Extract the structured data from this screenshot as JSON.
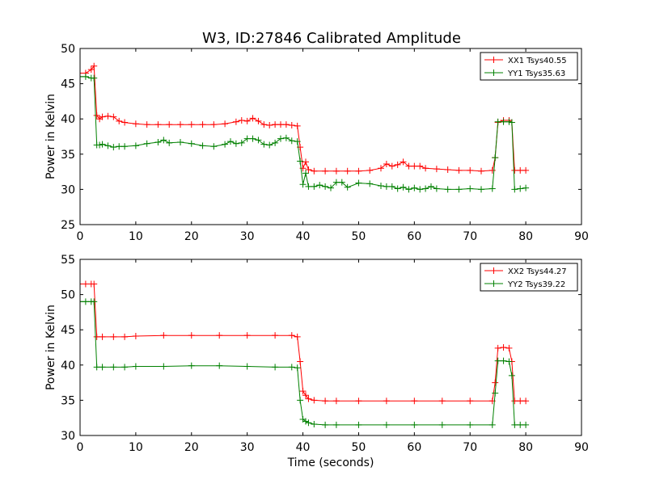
{
  "title": "W3, ID:27846 Calibrated Amplitude",
  "chart_data": [
    {
      "type": "line",
      "ylabel": "Power in Kelvin",
      "xlabel": "",
      "xlim": [
        0,
        90
      ],
      "ylim": [
        25,
        50
      ],
      "xticks": [
        "0",
        "10",
        "20",
        "30",
        "40",
        "50",
        "60",
        "70",
        "80",
        "90"
      ],
      "yticks": [
        "25",
        "30",
        "35",
        "40",
        "45",
        "50"
      ],
      "grid": false,
      "legend": "top-right",
      "series": [
        {
          "name": "XX1 Tsys40.55",
          "color": "#ff0000",
          "marker": "+",
          "x": [
            0,
            1,
            2,
            2.5,
            3,
            3.5,
            4,
            5,
            6,
            7,
            8,
            10,
            12,
            14,
            16,
            18,
            20,
            22,
            24,
            26,
            28,
            29,
            30,
            31,
            32,
            33,
            34,
            35,
            36,
            37,
            38,
            39,
            39.5,
            40,
            40.5,
            41,
            42,
            44,
            46,
            48,
            50,
            52,
            54,
            55,
            56,
            57,
            58,
            59,
            60,
            61,
            62,
            64,
            66,
            68,
            70,
            72,
            74,
            74.5,
            75,
            76,
            77,
            77.5,
            78,
            79,
            80
          ],
          "y": [
            46.5,
            46.5,
            47.0,
            47.5,
            40.5,
            40.0,
            40.3,
            40.4,
            40.3,
            39.7,
            39.5,
            39.3,
            39.2,
            39.2,
            39.2,
            39.2,
            39.2,
            39.2,
            39.2,
            39.3,
            39.6,
            39.8,
            39.7,
            40.1,
            39.7,
            39.2,
            39.1,
            39.2,
            39.2,
            39.2,
            39.1,
            39.0,
            36.0,
            33.0,
            33.9,
            32.8,
            32.6,
            32.6,
            32.6,
            32.6,
            32.6,
            32.7,
            33.0,
            33.6,
            33.3,
            33.5,
            33.9,
            33.3,
            33.3,
            33.3,
            33.0,
            32.9,
            32.8,
            32.7,
            32.7,
            32.6,
            32.7,
            34.5,
            39.5,
            39.8,
            39.8,
            39.5,
            32.7,
            32.7,
            32.7
          ]
        },
        {
          "name": "YY1 Tsys35.63",
          "color": "#008000",
          "marker": "+",
          "x": [
            0,
            1,
            2,
            2.5,
            3,
            3.5,
            4,
            5,
            6,
            7,
            8,
            10,
            12,
            14,
            15,
            16,
            18,
            20,
            22,
            24,
            26,
            27,
            28,
            29,
            30,
            31,
            32,
            33,
            34,
            35,
            36,
            37,
            38,
            39,
            39.5,
            40,
            40.5,
            41,
            42,
            43,
            44,
            45,
            46,
            47,
            48,
            50,
            52,
            54,
            55,
            56,
            57,
            58,
            59,
            60,
            61,
            62,
            63,
            64,
            66,
            68,
            70,
            72,
            74,
            74.5,
            75,
            76,
            77,
            77.5,
            78,
            79,
            80
          ],
          "y": [
            46.0,
            46.0,
            45.8,
            45.8,
            36.3,
            36.3,
            36.4,
            36.2,
            36.0,
            36.1,
            36.1,
            36.2,
            36.5,
            36.7,
            37.0,
            36.6,
            36.7,
            36.5,
            36.2,
            36.1,
            36.4,
            36.8,
            36.5,
            36.6,
            37.2,
            37.2,
            37.0,
            36.4,
            36.3,
            36.6,
            37.2,
            37.3,
            36.9,
            36.8,
            34.0,
            30.7,
            32.3,
            30.4,
            30.4,
            30.6,
            30.4,
            30.2,
            31.0,
            31.0,
            30.3,
            30.9,
            30.8,
            30.5,
            30.4,
            30.4,
            30.1,
            30.3,
            30.0,
            30.2,
            30.0,
            30.1,
            30.4,
            30.1,
            30.0,
            30.0,
            30.1,
            30.0,
            30.1,
            34.5,
            39.6,
            39.6,
            39.6,
            39.5,
            30.0,
            30.1,
            30.2
          ]
        }
      ]
    },
    {
      "type": "line",
      "ylabel": "Power in Kelvin",
      "xlabel": "Time (seconds)",
      "xlim": [
        0,
        90
      ],
      "ylim": [
        30,
        55
      ],
      "xticks": [
        "0",
        "10",
        "20",
        "30",
        "40",
        "50",
        "60",
        "70",
        "80",
        "90"
      ],
      "yticks": [
        "30",
        "35",
        "40",
        "45",
        "50",
        "55"
      ],
      "grid": false,
      "legend": "top-right",
      "series": [
        {
          "name": "XX2 Tsys44.27",
          "color": "#ff0000",
          "marker": "+",
          "x": [
            0,
            1,
            2,
            2.5,
            3,
            4,
            6,
            8,
            10,
            15,
            20,
            25,
            30,
            35,
            38,
            39,
            39.5,
            40,
            40.5,
            41,
            42,
            44,
            46,
            50,
            55,
            60,
            65,
            70,
            74,
            74.5,
            75,
            76,
            77,
            77.5,
            78,
            79,
            80
          ],
          "y": [
            51.5,
            51.5,
            51.5,
            51.5,
            44.0,
            44.0,
            44.0,
            44.0,
            44.1,
            44.2,
            44.2,
            44.2,
            44.2,
            44.2,
            44.2,
            44.0,
            40.5,
            36.3,
            35.7,
            35.2,
            35.0,
            34.9,
            34.9,
            34.9,
            34.9,
            34.9,
            34.9,
            34.9,
            34.9,
            37.5,
            42.4,
            42.5,
            42.4,
            40.5,
            34.9,
            34.9,
            34.9
          ]
        },
        {
          "name": "YY2 Tsys39.22",
          "color": "#008000",
          "marker": "+",
          "x": [
            0,
            1,
            2,
            2.5,
            3,
            4,
            6,
            8,
            10,
            15,
            20,
            25,
            30,
            35,
            38,
            39,
            39.5,
            40,
            40.5,
            41,
            42,
            44,
            46,
            50,
            55,
            60,
            65,
            70,
            74,
            74.5,
            75,
            76,
            77,
            77.5,
            78,
            79,
            80
          ],
          "y": [
            49.0,
            49.0,
            49.0,
            49.0,
            39.7,
            39.7,
            39.7,
            39.7,
            39.8,
            39.8,
            39.9,
            39.9,
            39.8,
            39.7,
            39.7,
            39.6,
            35.0,
            32.3,
            32.0,
            31.8,
            31.6,
            31.5,
            31.5,
            31.5,
            31.5,
            31.5,
            31.5,
            31.5,
            31.5,
            36.0,
            40.6,
            40.6,
            40.5,
            38.5,
            31.5,
            31.5,
            31.5
          ]
        }
      ]
    }
  ]
}
